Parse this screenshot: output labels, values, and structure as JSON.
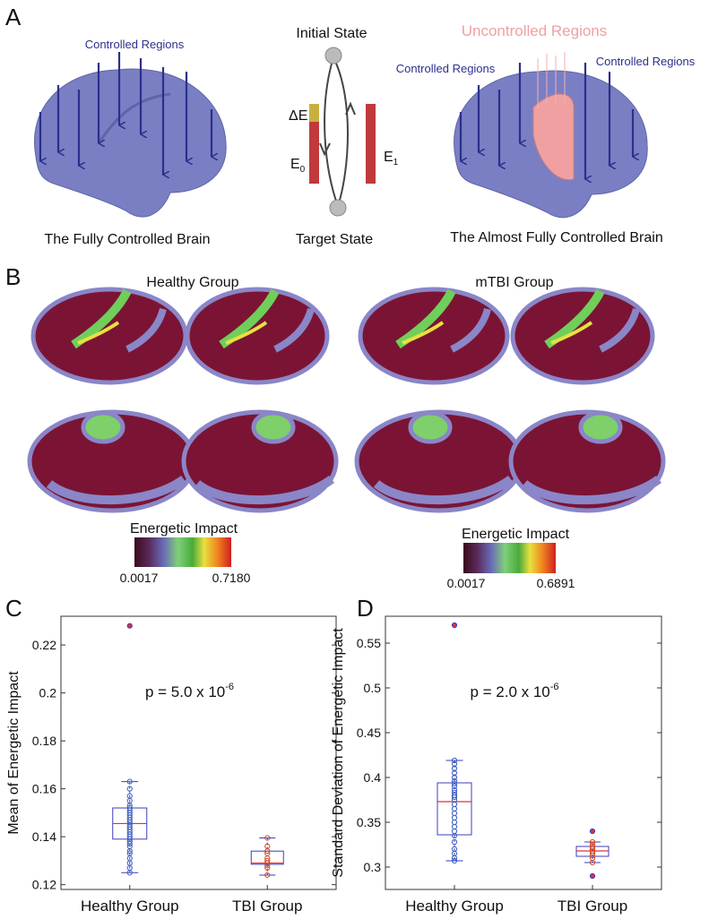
{
  "panel_labels": [
    "A",
    "B",
    "C",
    "D"
  ],
  "panel_a": {
    "left_label": "Controlled Regions",
    "left_caption": "The Fully Controlled Brain",
    "initial": "Initial State",
    "target": "Target State",
    "delta": "ΔE",
    "e0": "E",
    "e0_sub": "0",
    "e1": "E",
    "e1_sub": "1",
    "right_uncontrolled": "Uncontrolled Regions",
    "right_controlled_left": "Controlled Regions",
    "right_controlled_right": "Controlled Regions",
    "right_caption": "The Almost Fully Controlled Brain"
  },
  "panel_b": {
    "groups": [
      {
        "title": "Healthy Group",
        "colorbar_title": "Energetic Impact",
        "colorbar_min": "0.0017",
        "colorbar_max": "0.7180"
      },
      {
        "title": "mTBI Group",
        "colorbar_title": "Energetic Impact",
        "colorbar_min": "0.0017",
        "colorbar_max": "0.6891"
      }
    ]
  },
  "chart_data": [
    {
      "type": "box",
      "ylabel": "Mean of Energetic Impact",
      "annotation": "p = 5.0 x 10",
      "annotation_exponent": "-6",
      "categories": [
        "Healthy Group",
        "TBI Group"
      ],
      "ylim": [
        0.118,
        0.232
      ],
      "yticks": [
        0.12,
        0.14,
        0.16,
        0.18,
        0.2,
        0.22
      ],
      "box_color": "#3a3fbf",
      "median_color": "#e0303a",
      "boxes": [
        {
          "median": 0.1455,
          "q1": 0.139,
          "q3": 0.152,
          "whisker_low": 0.125,
          "whisker_high": 0.163,
          "outliers": [
            0.228
          ],
          "point_color": "#3f5fbf",
          "points": [
            0.125,
            0.127,
            0.129,
            0.131,
            0.133,
            0.134,
            0.136,
            0.137,
            0.138,
            0.139,
            0.14,
            0.141,
            0.142,
            0.143,
            0.144,
            0.145,
            0.146,
            0.147,
            0.148,
            0.149,
            0.15,
            0.151,
            0.152,
            0.153,
            0.155,
            0.157,
            0.16,
            0.163
          ]
        },
        {
          "median": 0.129,
          "q1": 0.1285,
          "q3": 0.134,
          "whisker_low": 0.124,
          "whisker_high": 0.1395,
          "outliers": [],
          "point_color": "#d04a2a",
          "points": [
            0.124,
            0.127,
            0.128,
            0.129,
            0.13,
            0.131,
            0.133,
            0.134,
            0.136,
            0.1395
          ]
        }
      ]
    },
    {
      "type": "box",
      "ylabel": "Standard Deviation of Energetic Impact",
      "annotation": "p = 2.0 x 10",
      "annotation_exponent": "-6",
      "categories": [
        "Healthy Group",
        "TBI Group"
      ],
      "ylim": [
        0.275,
        0.58
      ],
      "yticks": [
        0.3,
        0.35,
        0.4,
        0.45,
        0.5,
        0.55
      ],
      "box_color": "#3a3fbf",
      "median_color": "#e0303a",
      "boxes": [
        {
          "median": 0.373,
          "q1": 0.336,
          "q3": 0.394,
          "whisker_low": 0.307,
          "whisker_high": 0.419,
          "outliers": [
            0.57
          ],
          "point_color": "#3f5fbf",
          "points": [
            0.307,
            0.31,
            0.315,
            0.32,
            0.328,
            0.335,
            0.34,
            0.345,
            0.35,
            0.355,
            0.36,
            0.365,
            0.37,
            0.375,
            0.378,
            0.38,
            0.383,
            0.386,
            0.39,
            0.393,
            0.396,
            0.4,
            0.405,
            0.41,
            0.415,
            0.419
          ]
        },
        {
          "median": 0.318,
          "q1": 0.312,
          "q3": 0.323,
          "whisker_low": 0.305,
          "whisker_high": 0.328,
          "outliers": [
            0.34,
            0.29
          ],
          "point_color": "#d04a2a",
          "points": [
            0.305,
            0.31,
            0.313,
            0.316,
            0.318,
            0.32,
            0.322,
            0.325,
            0.328
          ]
        }
      ]
    }
  ]
}
